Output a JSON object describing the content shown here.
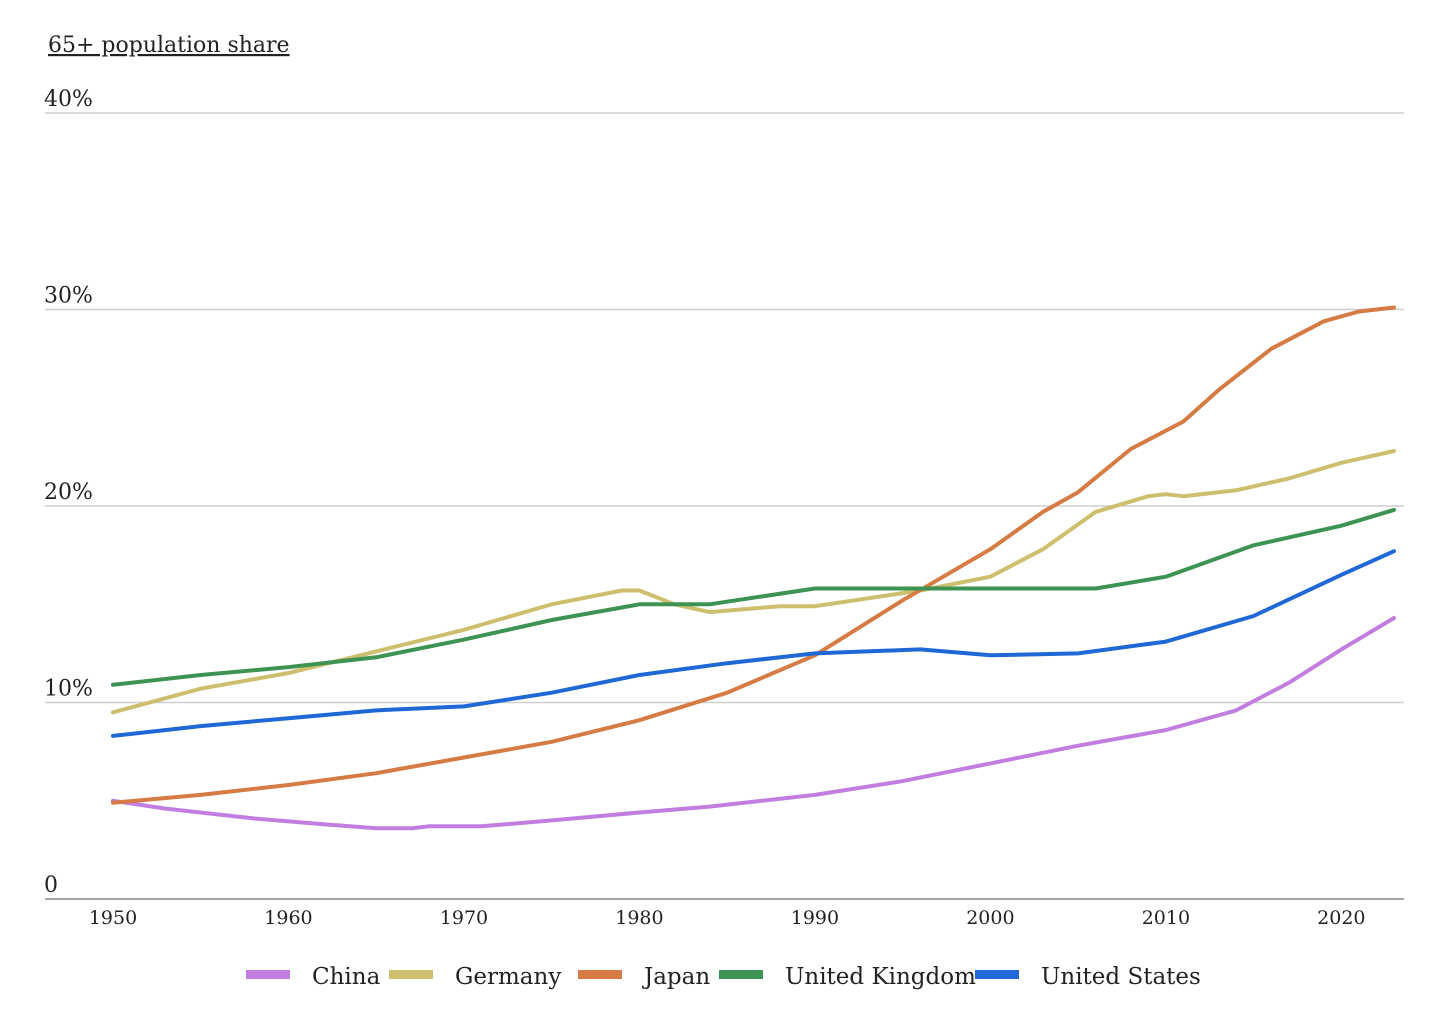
{
  "chart_data": {
    "type": "line",
    "ylabel": "65+ population share",
    "xlabel": "",
    "xlim": [
      1950,
      2023
    ],
    "ylim": [
      0,
      40
    ],
    "x_ticks": [
      {
        "value": 1950,
        "label": "1950"
      },
      {
        "value": 1960,
        "label": "1960"
      },
      {
        "value": 1970,
        "label": "1970"
      },
      {
        "value": 1980,
        "label": "1980"
      },
      {
        "value": 1990,
        "label": "1990"
      },
      {
        "value": 2000,
        "label": "2000"
      },
      {
        "value": 2010,
        "label": "2010"
      },
      {
        "value": 2020,
        "label": "2020"
      }
    ],
    "y_ticks": [
      {
        "value": 0,
        "label": "0"
      },
      {
        "value": 10,
        "label": "10%"
      },
      {
        "value": 20,
        "label": "20%"
      },
      {
        "value": 30,
        "label": "30%"
      },
      {
        "value": 40,
        "label": "40%"
      }
    ],
    "grid": true,
    "legend_position": "bottom",
    "series": [
      {
        "name": "China",
        "color": "#c17ee0",
        "x": [
          1950,
          1953,
          1958,
          1962,
          1965,
          1967,
          1968,
          1971,
          1975,
          1980,
          1984,
          1990,
          1995,
          2000,
          2005,
          2010,
          2014,
          2017,
          2020,
          2023
        ],
        "y": [
          5.0,
          4.6,
          4.1,
          3.8,
          3.6,
          3.6,
          3.7,
          3.7,
          4.0,
          4.4,
          4.7,
          5.3,
          6.0,
          6.9,
          7.8,
          8.6,
          9.6,
          11.0,
          12.7,
          14.3
        ]
      },
      {
        "name": "Germany",
        "color": "#cdbf6e",
        "x": [
          1950,
          1955,
          1960,
          1965,
          1970,
          1975,
          1979,
          1980,
          1982,
          1984,
          1988,
          1990,
          1993,
          1996,
          2000,
          2003,
          2006,
          2009,
          2010,
          2011,
          2014,
          2017,
          2020,
          2023
        ],
        "y": [
          9.5,
          10.7,
          11.5,
          12.6,
          13.7,
          15.0,
          15.7,
          15.7,
          15.0,
          14.6,
          14.9,
          14.9,
          15.3,
          15.7,
          16.4,
          17.8,
          19.7,
          20.5,
          20.6,
          20.5,
          20.8,
          21.4,
          22.2,
          22.8
        ]
      },
      {
        "name": "Japan",
        "color": "#d67b44",
        "x": [
          1950,
          1955,
          1960,
          1965,
          1970,
          1975,
          1980,
          1985,
          1990,
          1995,
          2000,
          2003,
          2005,
          2008,
          2011,
          2013,
          2016,
          2019,
          2021,
          2023
        ],
        "y": [
          4.9,
          5.3,
          5.8,
          6.4,
          7.2,
          8.0,
          9.1,
          10.5,
          12.4,
          15.2,
          17.8,
          19.7,
          20.7,
          22.9,
          24.3,
          25.9,
          28.0,
          29.4,
          29.9,
          30.1
        ]
      },
      {
        "name": "United Kingdom",
        "color": "#3d9452",
        "x": [
          1950,
          1955,
          1960,
          1965,
          1970,
          1975,
          1980,
          1984,
          1990,
          1995,
          2000,
          2003,
          2006,
          2010,
          2015,
          2020,
          2023
        ],
        "y": [
          10.9,
          11.4,
          11.8,
          12.3,
          13.2,
          14.2,
          15.0,
          15.0,
          15.8,
          15.8,
          15.8,
          15.8,
          15.8,
          16.4,
          18.0,
          19.0,
          19.8
        ]
      },
      {
        "name": "United States",
        "color": "#1f68d5",
        "x": [
          1950,
          1955,
          1960,
          1965,
          1970,
          1975,
          1980,
          1985,
          1990,
          1996,
          2000,
          2005,
          2010,
          2015,
          2020,
          2023
        ],
        "y": [
          8.3,
          8.8,
          9.2,
          9.6,
          9.8,
          10.5,
          11.4,
          12.0,
          12.5,
          12.7,
          12.4,
          12.5,
          13.1,
          14.4,
          16.5,
          17.7
        ]
      }
    ]
  }
}
